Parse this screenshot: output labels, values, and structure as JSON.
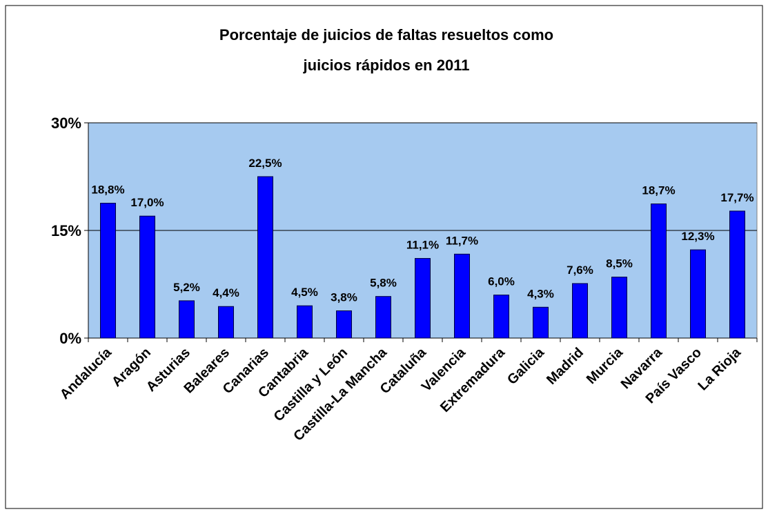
{
  "chart_data": {
    "type": "bar",
    "title": [
      "Porcentaje de juicios de faltas resueltos como",
      "juicios rápidos en 2011"
    ],
    "categories": [
      "Andalucía",
      "Aragón",
      "Asturias",
      "Baleares",
      "Canarias",
      "Cantabria",
      "Castilla y León",
      "Castilla-La Mancha",
      "Cataluña",
      "Valencia",
      "Extremadura",
      "Galicia",
      "Madrid",
      "Murcia",
      "Navarra",
      "País Vasco",
      "La Rioja"
    ],
    "values": [
      18.8,
      17.0,
      5.2,
      4.4,
      22.5,
      4.5,
      3.8,
      5.8,
      11.1,
      11.7,
      6.0,
      4.3,
      7.6,
      8.5,
      18.7,
      12.3,
      17.7
    ],
    "value_labels": [
      "18,8%",
      "17,0%",
      "5,2%",
      "4,4%",
      "22,5%",
      "4,5%",
      "3,8%",
      "5,8%",
      "11,1%",
      "11,7%",
      "6,0%",
      "4,3%",
      "7,6%",
      "8,5%",
      "18,7%",
      "12,3%",
      "17,7%"
    ],
    "color": "#0000ff",
    "ylim": [
      0,
      30
    ],
    "yticks": [
      {
        "value": 0,
        "label": "0%"
      },
      {
        "value": 15,
        "label": "15%"
      },
      {
        "value": 30,
        "label": "30%"
      }
    ],
    "grid": true
  }
}
